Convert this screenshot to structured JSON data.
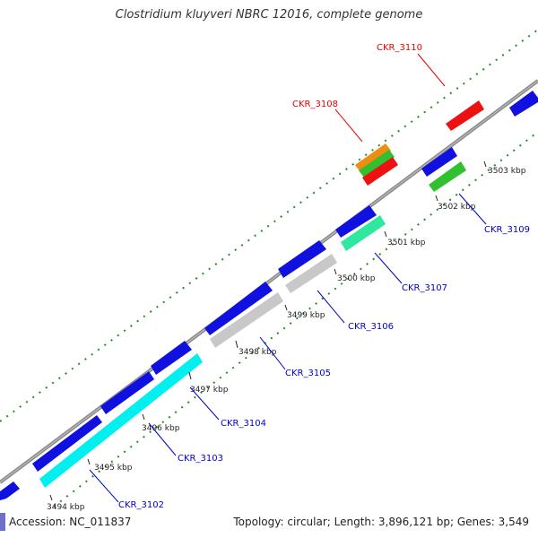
{
  "title": "Clostridium kluyveri NBRC 12016, complete genome",
  "footer": {
    "accession": "Accession: NC_011837",
    "summary": "Topology: circular; Length: 3,896,121 bp; Genes: 3,549"
  },
  "tick_labels": [
    "3494 kbp",
    "3495 kbp",
    "3496 kbp",
    "3497 kbp",
    "3498 kbp",
    "3499 kbp",
    "3500 kbp",
    "3501 kbp",
    "3502 kbp",
    "3503 kbp"
  ],
  "gene_labels": [
    {
      "text": "CKR_3110",
      "color": "#ee0000"
    },
    {
      "text": "CKR_3108",
      "color": "#ee0000"
    },
    {
      "text": "CKR_3109",
      "color": "#0000cc"
    },
    {
      "text": "CKR_3107",
      "color": "#0000cc"
    },
    {
      "text": "CKR_3106",
      "color": "#0000cc"
    },
    {
      "text": "CKR_3105",
      "color": "#0000cc"
    },
    {
      "text": "CKR_3104",
      "color": "#0000cc"
    },
    {
      "text": "CKR_3103",
      "color": "#0000cc"
    },
    {
      "text": "CKR_3102",
      "color": "#0000cc"
    }
  ],
  "colors": {
    "backbone": "#888888",
    "tick_green": "#2a8a2a",
    "cds_blue": "#1010e0",
    "cyan": "#00f0f0",
    "gray": "#c8c8c8",
    "mint": "#2ee8a0",
    "green": "#30c030",
    "red": "#ee1111",
    "orange": "#f08c10"
  }
}
